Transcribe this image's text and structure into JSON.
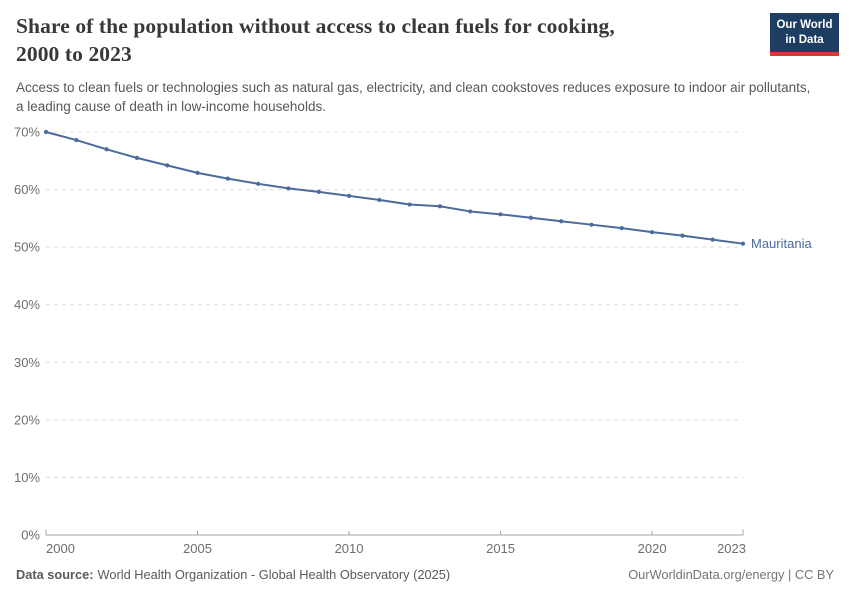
{
  "header": {
    "title_line1": "Share of the population without access to clean fuels for cooking,",
    "title_line2": "2000 to 2023",
    "subtitle": "Access to clean fuels or technologies such as natural gas, electricity, and clean cookstoves reduces exposure to indoor air pollutants, a leading cause of death in low-income households."
  },
  "logo": {
    "line1": "Our World",
    "line2": "in Data",
    "bg_color": "#1d3d63",
    "accent_color": "#d73a34"
  },
  "chart_data": {
    "type": "line",
    "title": "Share of the population without access to clean fuels for cooking, 2000 to 2023",
    "x": [
      2000,
      2001,
      2002,
      2003,
      2004,
      2005,
      2006,
      2007,
      2008,
      2009,
      2010,
      2011,
      2012,
      2013,
      2014,
      2015,
      2016,
      2017,
      2018,
      2019,
      2020,
      2021,
      2022,
      2023
    ],
    "series": [
      {
        "name": "Mauritania",
        "color": "#4C6A9C",
        "values": [
          70,
          68.6,
          67,
          65.5,
          64.2,
          62.9,
          61.9,
          61,
          60.2,
          59.6,
          58.9,
          58.2,
          57.4,
          57.1,
          56.2,
          55.7,
          55.1,
          54.5,
          53.9,
          53.3,
          52.6,
          52,
          51.3,
          50.6
        ]
      }
    ],
    "x_ticks": [
      2000,
      2005,
      2010,
      2015,
      2020,
      2023
    ],
    "y_ticks": [
      0,
      10,
      20,
      30,
      40,
      50,
      60,
      70
    ],
    "y_tick_suffix": "%",
    "xlim": [
      2000,
      2023
    ],
    "ylim": [
      0,
      70
    ],
    "grid": "horizontal-dashed",
    "legend": "series-end-label"
  },
  "footer": {
    "source_label": "Data source:",
    "source_text": "World Health Organization - Global Health Observatory (2025)",
    "attribution": "OurWorldinData.org/energy | CC BY"
  }
}
